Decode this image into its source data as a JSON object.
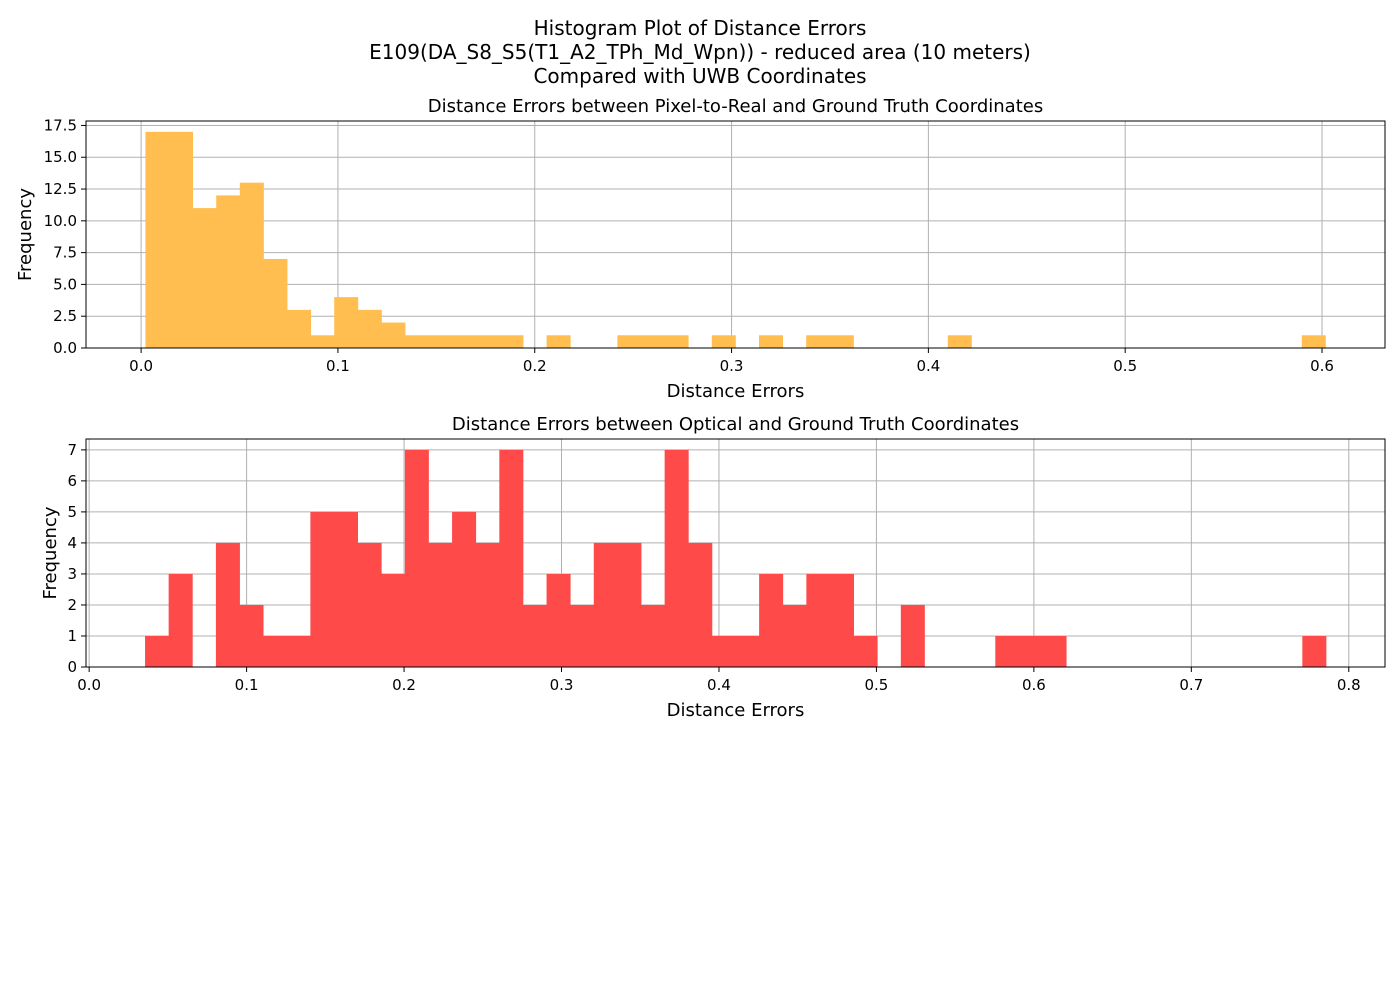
{
  "figure": {
    "title_lines": [
      "Histogram Plot of Distance Errors",
      "E109(DA_S8_S5(T1_A2_TPh_Md_Wpn)) - reduced area (10 meters)",
      "Compared with UWB Coordinates"
    ]
  },
  "chart_data": [
    {
      "type": "bar",
      "title": "Distance Errors between Pixel-to-Real and Ground Truth Coordinates",
      "xlabel": "Distance Errors",
      "ylabel": "Frequency",
      "xlim": [
        -0.028,
        0.632
      ],
      "ylim": [
        0,
        17.85
      ],
      "xticks": [
        "0.0",
        "0.1",
        "0.2",
        "0.3",
        "0.4",
        "0.5",
        "0.6"
      ],
      "xtick_values": [
        0.0,
        0.1,
        0.2,
        0.3,
        0.4,
        0.5,
        0.6
      ],
      "yticks": [
        "0.0",
        "2.5",
        "5.0",
        "7.5",
        "10.0",
        "12.5",
        "15.0",
        "17.5"
      ],
      "ytick_values": [
        0,
        2.5,
        5,
        7.5,
        10,
        12.5,
        15,
        17.5
      ],
      "grid": true,
      "color": "#ffbe4f",
      "bin_start": 0.0022,
      "bin_width": 0.01199,
      "values": [
        17,
        17,
        11,
        12,
        13,
        7,
        3,
        1,
        4,
        3,
        2,
        1,
        1,
        1,
        1,
        1,
        0,
        1,
        0,
        0,
        1,
        1,
        1,
        0,
        1,
        0,
        1,
        0,
        1,
        1,
        0,
        0,
        0,
        0,
        1,
        0,
        0,
        0,
        0,
        0,
        0,
        0,
        0,
        0,
        0,
        0,
        0,
        0,
        0,
        1
      ]
    },
    {
      "type": "bar",
      "title": "Distance Errors between Optical and Ground Truth Coordinates",
      "xlabel": "Distance Errors",
      "ylabel": "Frequency",
      "xlim": [
        -0.002,
        0.823
      ],
      "ylim": [
        0,
        7.35
      ],
      "xticks": [
        "0.0",
        "0.1",
        "0.2",
        "0.3",
        "0.4",
        "0.5",
        "0.6",
        "0.7",
        "0.8"
      ],
      "xtick_values": [
        0.0,
        0.1,
        0.2,
        0.3,
        0.4,
        0.5,
        0.6,
        0.7,
        0.8
      ],
      "yticks": [
        "0",
        "1",
        "2",
        "3",
        "4",
        "5",
        "6",
        "7"
      ],
      "ytick_values": [
        0,
        1,
        2,
        3,
        4,
        5,
        6,
        7
      ],
      "grid": true,
      "color": "#ff4a4a",
      "bin_start": 0.0355,
      "bin_width": 0.015,
      "values": [
        1,
        3,
        0,
        4,
        2,
        1,
        1,
        5,
        5,
        4,
        3,
        7,
        4,
        5,
        4,
        7,
        2,
        3,
        2,
        4,
        4,
        2,
        7,
        4,
        1,
        1,
        3,
        2,
        3,
        3,
        1,
        0,
        2,
        0,
        0,
        0,
        1,
        1,
        1,
        0,
        0,
        0,
        0,
        0,
        0,
        0,
        0,
        0,
        0,
        1
      ]
    }
  ]
}
